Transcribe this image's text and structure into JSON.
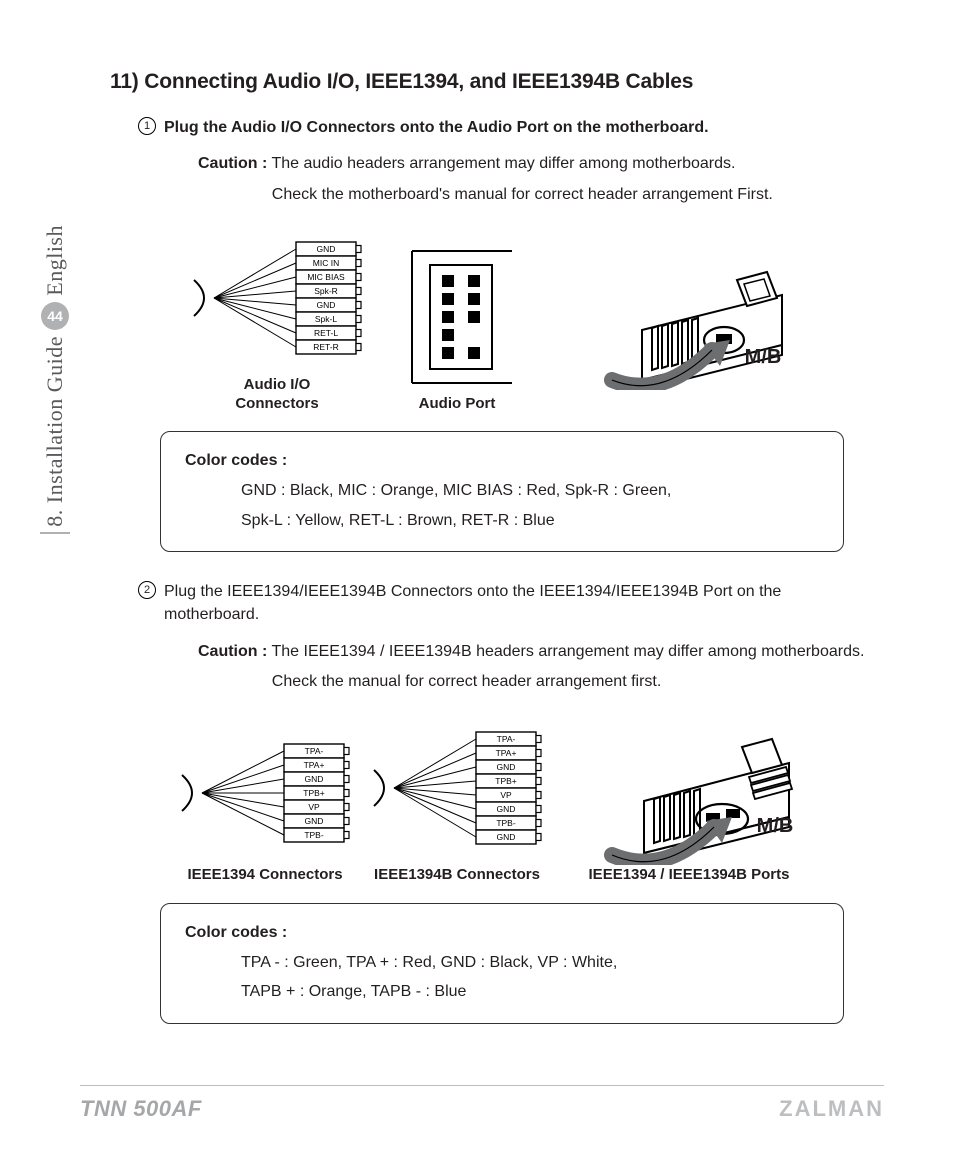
{
  "sidebar": {
    "chapter": "8. Installation Guide",
    "page_no": "44",
    "lang": "English"
  },
  "title": "11) Connecting Audio I/O, IEEE1394, and IEEE1394B Cables",
  "step1": {
    "num": "1",
    "text": "Plug the Audio I/O Connectors onto the Audio Port on the motherboard.",
    "caution_label": "Caution :",
    "caution1": "The audio headers arrangement may differ among motherboards.",
    "caution2": "Check the motherboard's manual for correct header arrangement First."
  },
  "fig1": {
    "connectors": {
      "pins": [
        "GND",
        "MIC IN",
        "MIC BIAS",
        "Spk-R",
        "GND",
        "Spk-L",
        "RET-L",
        "RET-R"
      ],
      "caption": "Audio I/O\nConnectors"
    },
    "port": {
      "caption": "Audio Port",
      "bg": "#ffffff",
      "pin": "#000000",
      "outline": "#000000"
    },
    "mb": {
      "label": "M/B"
    }
  },
  "codebox1": {
    "head": "Color codes :",
    "line1": "GND : Black,  MIC : Orange,  MIC BIAS : Red,  Spk-R : Green,",
    "line2": "Spk-L : Yellow,  RET-L : Brown,  RET-R : Blue"
  },
  "step2": {
    "num": "2",
    "text1": "Plug the IEEE1394/IEEE1394B Connectors onto the IEEE1394/IEEE1394B Port on the",
    "text2": "motherboard.",
    "caution_label": "Caution :",
    "caution1": "The IEEE1394 / IEEE1394B headers arrangement may differ among motherboards.",
    "caution2": "Check the manual for correct header arrangement first."
  },
  "fig2": {
    "c1394": {
      "pins": [
        "TPA-",
        "TPA+",
        "GND",
        "TPB+",
        "VP",
        "GND",
        "TPB-"
      ],
      "caption": "IEEE1394 Connectors"
    },
    "c1394b": {
      "pins": [
        "TPA-",
        "TPA+",
        "GND",
        "TPB+",
        "VP",
        "GND",
        "TPB-",
        "GND"
      ],
      "caption": "IEEE1394B Connectors"
    },
    "mb": {
      "label": "M/B",
      "caption": "IEEE1394 / IEEE1394B Ports"
    }
  },
  "codebox2": {
    "head": "Color codes :",
    "line1": "TPA - : Green,  TPA + : Red,  GND : Black,  VP : White,",
    "line2": "TAPB + : Orange,  TAPB - : Blue"
  },
  "footer": {
    "model": "TNN 500AF",
    "brand": "ZALMAN"
  },
  "style": {
    "ink": "#231f20",
    "grey": "#a6a7a9",
    "box_stroke": "#333333",
    "box_radius": 10,
    "pin_row_h": 14,
    "pin_row_w": 60,
    "svg_stroke": "#000000"
  }
}
